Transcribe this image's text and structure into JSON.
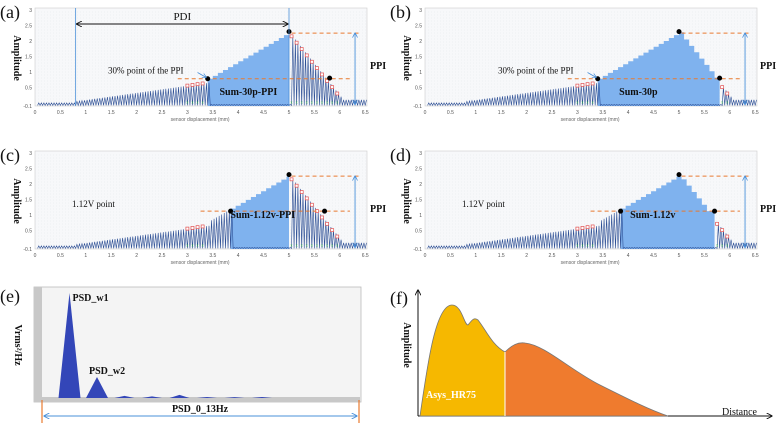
{
  "chart_data": [
    {
      "id": "a",
      "type": "line",
      "panel_label": "(a)",
      "xlabel": "sensor displacement (mm)",
      "ylabel": "Amplitude",
      "xlim": [
        0,
        6.5
      ],
      "ylim": [
        -0.1,
        3
      ],
      "xticks": [
        "0",
        "0.5",
        "1",
        "1.5",
        "2",
        "2.5",
        "3",
        "3.5",
        "4",
        "4.5",
        "5",
        "5.5",
        "6",
        "6.5"
      ],
      "yticks": [
        "-0.1",
        "0.5",
        "1",
        "1.5",
        "2",
        "2.5",
        "3"
      ],
      "fill_range": [
        3.4,
        5.0
      ],
      "threshold": 0.78,
      "peak": [
        5.0,
        2.3
      ],
      "peak_level": 2.25,
      "threshold_points": [
        [
          3.4,
          0.78
        ],
        [
          5.8,
          0.8
        ]
      ],
      "annotations": {
        "pdi": "PDI",
        "point": "30% point of the PPI",
        "sum": "Sum-30p-PPI",
        "ppi": "PPI"
      },
      "pdi_range": [
        0.8,
        5.0
      ]
    },
    {
      "id": "b",
      "type": "line",
      "panel_label": "(b)",
      "xlabel": "sensor displacement (mm)",
      "ylabel": "Amplitude",
      "xlim": [
        0,
        6.5
      ],
      "ylim": [
        -0.1,
        3
      ],
      "xticks": [
        "0",
        "0.5",
        "1",
        "1.5",
        "2",
        "2.5",
        "3",
        "3.5",
        "4",
        "4.5",
        "5",
        "5.5",
        "6",
        "6.5"
      ],
      "yticks": [
        "-0.1",
        "0.5",
        "1",
        "1.5",
        "2",
        "2.5",
        "3"
      ],
      "fill_range": [
        3.4,
        5.8
      ],
      "threshold": 0.78,
      "peak": [
        5.0,
        2.3
      ],
      "peak_level": 2.25,
      "threshold_points": [
        [
          3.4,
          0.78
        ],
        [
          5.8,
          0.8
        ]
      ],
      "annotations": {
        "point": "30% point of the PPI",
        "sum": "Sum-30p",
        "ppi": "PPI"
      }
    },
    {
      "id": "c",
      "type": "line",
      "panel_label": "(c)",
      "xlabel": "sensor displacement (mm)",
      "ylabel": "Amplitude",
      "xlim": [
        0,
        6.5
      ],
      "ylim": [
        -0.1,
        3
      ],
      "xticks": [
        "0",
        "0.5",
        "1",
        "1.5",
        "2",
        "2.5",
        "3",
        "3.5",
        "4",
        "4.5",
        "5",
        "5.5",
        "6",
        "6.5"
      ],
      "yticks": [
        "-0.1",
        "0.5",
        "1",
        "1.5",
        "2",
        "2.5",
        "3"
      ],
      "fill_range": [
        3.85,
        5.0
      ],
      "threshold": 1.12,
      "peak": [
        5.0,
        2.3
      ],
      "peak_level": 2.25,
      "threshold_points": [
        [
          3.85,
          1.12
        ],
        [
          5.7,
          1.12
        ]
      ],
      "annotations": {
        "point": "1.12V point",
        "sum": "Sum-1.12v-PPI",
        "ppi": "PPI"
      }
    },
    {
      "id": "d",
      "type": "line",
      "panel_label": "(d)",
      "xlabel": "sensor displacement (mm)",
      "ylabel": "Amplitude",
      "xlim": [
        0,
        6.5
      ],
      "ylim": [
        -0.1,
        3
      ],
      "xticks": [
        "0",
        "0.5",
        "1",
        "1.5",
        "2",
        "2.5",
        "3",
        "3.5",
        "4",
        "4.5",
        "5",
        "5.5",
        "6",
        "6.5"
      ],
      "yticks": [
        "-0.1",
        "0.5",
        "1",
        "1.5",
        "2",
        "2.5",
        "3"
      ],
      "fill_range": [
        3.85,
        5.7
      ],
      "threshold": 1.12,
      "peak": [
        5.0,
        2.3
      ],
      "peak_level": 2.25,
      "threshold_points": [
        [
          3.85,
          1.12
        ],
        [
          5.7,
          1.12
        ]
      ],
      "annotations": {
        "point": "1.12V point",
        "sum": "Sum-1.12v",
        "ppi": "PPI"
      }
    },
    {
      "id": "e",
      "type": "area",
      "panel_label": "(e)",
      "ylabel": "Vrms²/Hz",
      "xrange_label": "PSD_0_13Hz",
      "xlim": [
        0,
        13
      ],
      "peaks": [
        {
          "x": 1,
          "y": 1.0,
          "label": "PSD_w1"
        },
        {
          "x": 2,
          "y": 0.2,
          "label": "PSD_w2"
        },
        {
          "x": 3,
          "y": 0.02
        },
        {
          "x": 4,
          "y": 0.015
        },
        {
          "x": 5,
          "y": 0.03
        },
        {
          "x": 6,
          "y": 0.01
        },
        {
          "x": 7,
          "y": 0.008
        },
        {
          "x": 8,
          "y": 0.01
        }
      ]
    },
    {
      "id": "f",
      "type": "area",
      "panel_label": "(f)",
      "ylabel": "Amplitude",
      "xlabel": "Distance",
      "region_label": "Asys_HR75",
      "colors": {
        "region1": "#f6b800",
        "region2": "#ef7b2e"
      }
    }
  ]
}
